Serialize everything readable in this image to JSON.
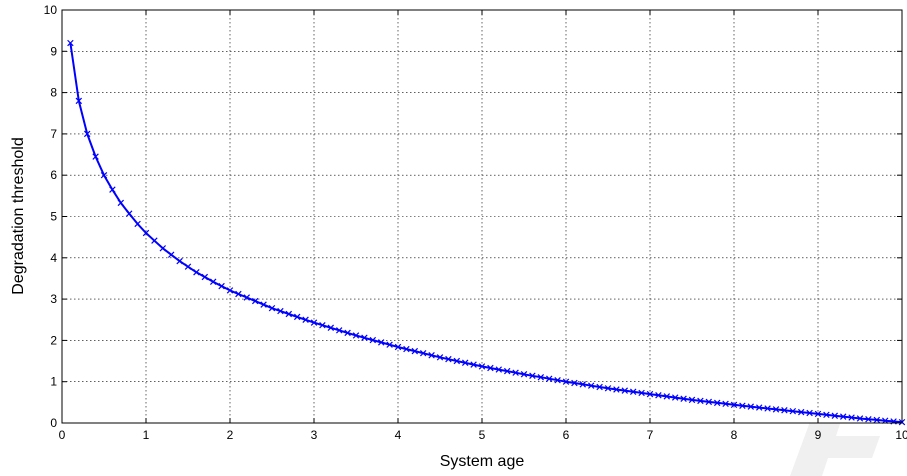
{
  "chart_data": {
    "type": "line",
    "xlabel": "System age",
    "ylabel": "Degradation threshold",
    "xlim": [
      0,
      10
    ],
    "ylim": [
      0,
      10
    ],
    "xticks": [
      "0",
      "1",
      "2",
      "3",
      "4",
      "5",
      "6",
      "7",
      "8",
      "9",
      "10"
    ],
    "yticks": [
      "0",
      "1",
      "2",
      "3",
      "4",
      "5",
      "6",
      "7",
      "8",
      "9",
      "10"
    ],
    "grid": true,
    "legend": "none",
    "series": [
      {
        "color": "#0000ff",
        "marker": "x",
        "x": [
          0.1,
          0.2,
          0.3,
          0.4,
          0.5,
          0.6,
          0.7,
          0.8,
          0.9,
          1.0,
          1.2,
          1.4,
          1.6,
          1.8,
          2.0,
          2.5,
          3.0,
          3.5,
          4.0,
          4.5,
          5.0,
          5.5,
          6.0,
          6.5,
          7.0,
          7.5,
          8.0,
          8.5,
          9.0,
          9.5,
          10.0
        ],
        "y": [
          9.2,
          7.8,
          7.0,
          6.45,
          6.0,
          5.65,
          5.33,
          5.07,
          4.82,
          4.6,
          4.23,
          3.92,
          3.65,
          3.42,
          3.21,
          2.78,
          2.43,
          2.12,
          1.84,
          1.59,
          1.37,
          1.18,
          1.0,
          0.84,
          0.7,
          0.56,
          0.44,
          0.33,
          0.22,
          0.11,
          0.02
        ]
      }
    ]
  },
  "watermark": {
    "color": "#f0f0f0"
  }
}
